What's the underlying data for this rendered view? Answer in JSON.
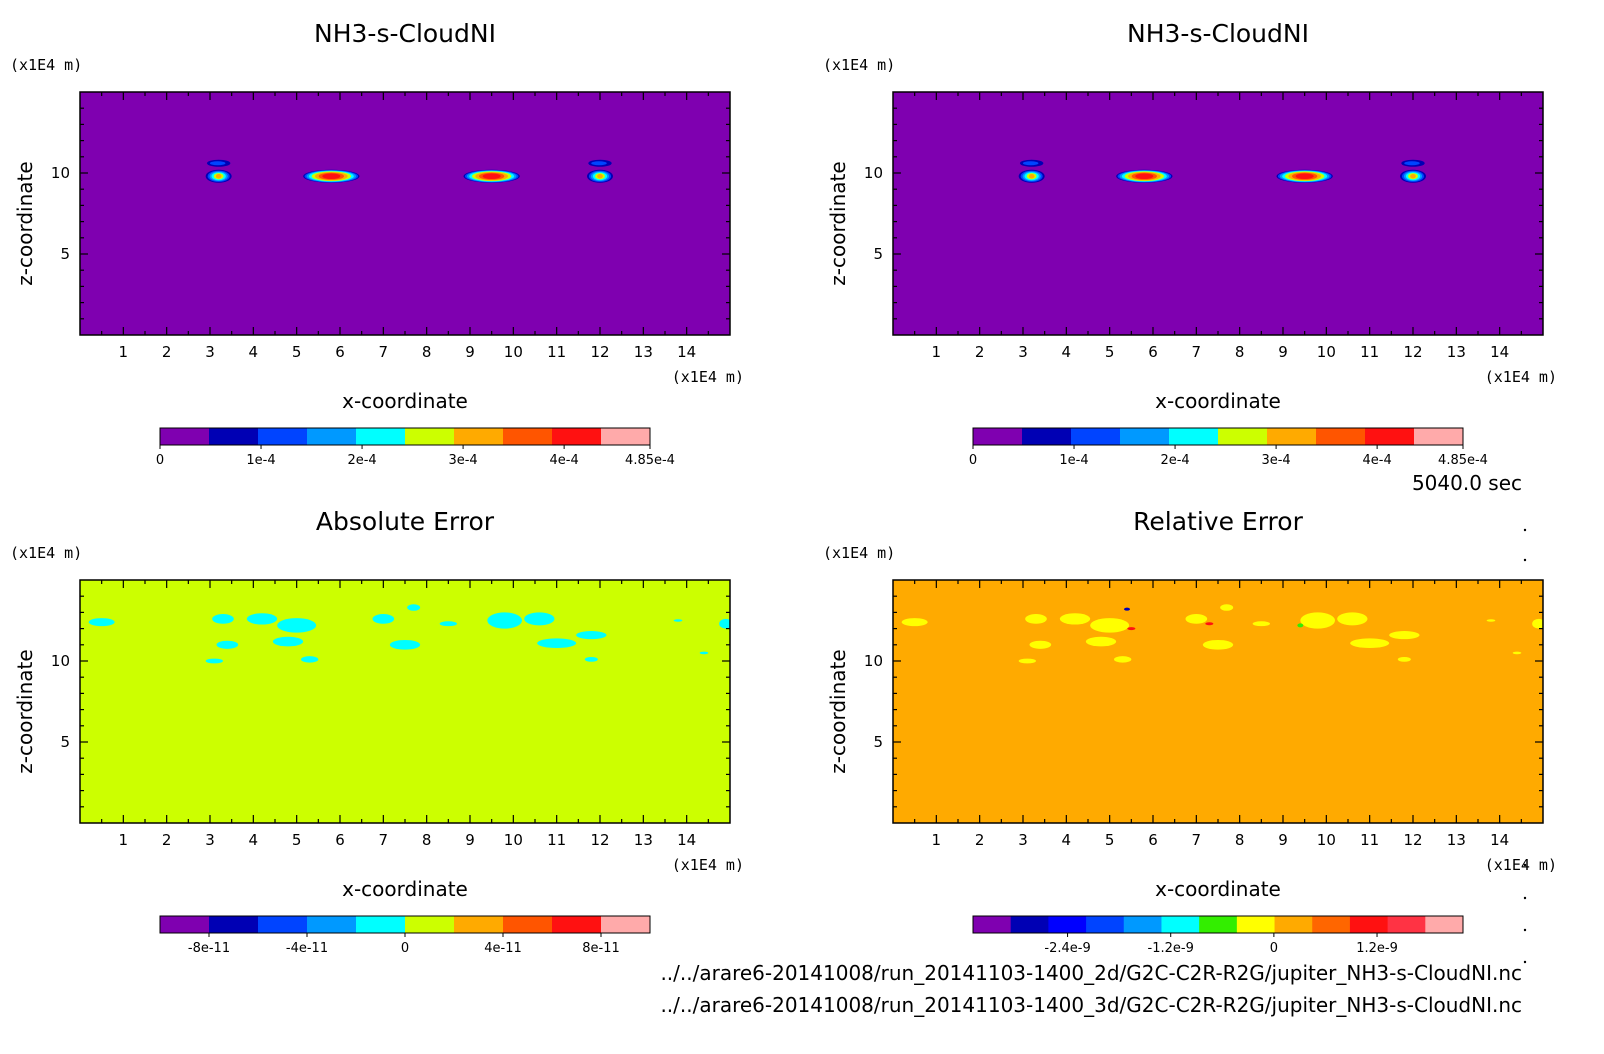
{
  "time_label": "5040.0 sec",
  "files": [
    "../../arare6-20141008/run_20141103-1400_2d/G2C-C2R-R2G/jupiter_NH3-s-CloudNI.nc",
    "../../arare6-20141008/run_20141103-1400_3d/G2C-C2R-R2G/jupiter_NH3-s-CloudNI.nc"
  ],
  "chart_data": [
    {
      "type": "heatmap",
      "title": "NH3-s-CloudNI",
      "xlabel": "x-coordinate",
      "ylabel": "z-coordinate",
      "x_unit": "(x1E4 m)",
      "y_unit": "(x1E4 m)",
      "xlim": [
        0,
        15
      ],
      "ylim": [
        0,
        15
      ],
      "xticks": [
        1,
        2,
        3,
        4,
        5,
        6,
        7,
        8,
        9,
        10,
        11,
        12,
        13,
        14
      ],
      "yticks": [
        5,
        10
      ],
      "background_color": "#7f00b0",
      "features": [
        {
          "kind": "cloud",
          "x": 3.2,
          "z": 9.8,
          "width": 0.6,
          "peak": "2e-4"
        },
        {
          "kind": "cloud",
          "x": 5.8,
          "z": 9.8,
          "width": 1.3,
          "peak": "4e-4"
        },
        {
          "kind": "cloud",
          "x": 9.5,
          "z": 9.8,
          "width": 1.3,
          "peak": "4e-4"
        },
        {
          "kind": "cloud",
          "x": 12.0,
          "z": 9.8,
          "width": 0.6,
          "peak": "2e-4"
        }
      ],
      "colorbar": {
        "colors": [
          "#7f00b0",
          "#0000b4",
          "#0044ff",
          "#0099ff",
          "#00ffff",
          "#ccff00",
          "#ffaa00",
          "#ff5500",
          "#ff1111",
          "#ffaaaa"
        ],
        "labels": [
          "0",
          "1e-4",
          "2e-4",
          "3e-4",
          "4e-4",
          "4.85e-4"
        ],
        "label_positions": [
          0,
          1,
          2,
          3,
          4,
          4.85
        ],
        "range": [
          0,
          4.85
        ]
      }
    },
    {
      "type": "heatmap",
      "title": "NH3-s-CloudNI",
      "xlabel": "x-coordinate",
      "ylabel": "z-coordinate",
      "x_unit": "(x1E4 m)",
      "y_unit": "(x1E4 m)",
      "xlim": [
        0,
        15
      ],
      "ylim": [
        0,
        15
      ],
      "xticks": [
        1,
        2,
        3,
        4,
        5,
        6,
        7,
        8,
        9,
        10,
        11,
        12,
        13,
        14
      ],
      "yticks": [
        5,
        10
      ],
      "background_color": "#7f00b0",
      "features": [
        {
          "kind": "cloud",
          "x": 3.2,
          "z": 9.8,
          "width": 0.6,
          "peak": "2e-4"
        },
        {
          "kind": "cloud",
          "x": 5.8,
          "z": 9.8,
          "width": 1.3,
          "peak": "4e-4"
        },
        {
          "kind": "cloud",
          "x": 9.5,
          "z": 9.8,
          "width": 1.3,
          "peak": "4e-4"
        },
        {
          "kind": "cloud",
          "x": 12.0,
          "z": 9.8,
          "width": 0.6,
          "peak": "2e-4"
        }
      ],
      "colorbar": {
        "colors": [
          "#7f00b0",
          "#0000b4",
          "#0044ff",
          "#0099ff",
          "#00ffff",
          "#ccff00",
          "#ffaa00",
          "#ff5500",
          "#ff1111",
          "#ffaaaa"
        ],
        "labels": [
          "0",
          "1e-4",
          "2e-4",
          "3e-4",
          "4e-4",
          "4.85e-4"
        ],
        "label_positions": [
          0,
          1,
          2,
          3,
          4,
          4.85
        ],
        "range": [
          0,
          4.85
        ]
      }
    },
    {
      "type": "heatmap",
      "title": "Absolute Error",
      "xlabel": "x-coordinate",
      "ylabel": "z-coordinate",
      "x_unit": "(x1E4 m)",
      "y_unit": "(x1E4 m)",
      "xlim": [
        0,
        15
      ],
      "ylim": [
        0,
        15
      ],
      "xticks": [
        1,
        2,
        3,
        4,
        5,
        6,
        7,
        8,
        9,
        10,
        11,
        12,
        13,
        14
      ],
      "yticks": [
        5,
        10
      ],
      "background_color": "#ccff00",
      "patch_color": "#00ffff",
      "patches": [
        {
          "x": 3.3,
          "z": 12.6,
          "rx": 0.25,
          "rz": 0.3
        },
        {
          "x": 4.2,
          "z": 12.6,
          "rx": 0.35,
          "rz": 0.35
        },
        {
          "x": 5.0,
          "z": 12.2,
          "rx": 0.45,
          "rz": 0.45
        },
        {
          "x": 3.4,
          "z": 11.0,
          "rx": 0.25,
          "rz": 0.25
        },
        {
          "x": 4.8,
          "z": 11.2,
          "rx": 0.35,
          "rz": 0.3
        },
        {
          "x": 5.3,
          "z": 10.1,
          "rx": 0.2,
          "rz": 0.2
        },
        {
          "x": 3.1,
          "z": 10.0,
          "rx": 0.2,
          "rz": 0.15
        },
        {
          "x": 7.5,
          "z": 11.0,
          "rx": 0.35,
          "rz": 0.3
        },
        {
          "x": 7.0,
          "z": 12.6,
          "rx": 0.25,
          "rz": 0.3
        },
        {
          "x": 7.7,
          "z": 13.3,
          "rx": 0.15,
          "rz": 0.2
        },
        {
          "x": 8.5,
          "z": 12.3,
          "rx": 0.2,
          "rz": 0.15
        },
        {
          "x": 9.8,
          "z": 12.5,
          "rx": 0.4,
          "rz": 0.5
        },
        {
          "x": 10.6,
          "z": 12.6,
          "rx": 0.35,
          "rz": 0.4
        },
        {
          "x": 11.0,
          "z": 11.1,
          "rx": 0.45,
          "rz": 0.3
        },
        {
          "x": 11.8,
          "z": 11.6,
          "rx": 0.35,
          "rz": 0.25
        },
        {
          "x": 11.8,
          "z": 10.1,
          "rx": 0.15,
          "rz": 0.15
        },
        {
          "x": 0.5,
          "z": 12.4,
          "rx": 0.3,
          "rz": 0.25
        },
        {
          "x": 14.9,
          "z": 12.3,
          "rx": 0.15,
          "rz": 0.3
        },
        {
          "x": 13.8,
          "z": 12.5,
          "rx": 0.1,
          "rz": 0.08
        },
        {
          "x": 14.4,
          "z": 10.5,
          "rx": 0.1,
          "rz": 0.08
        }
      ],
      "colorbar": {
        "colors": [
          "#7f00b0",
          "#0000b4",
          "#0044ff",
          "#0099ff",
          "#00ffff",
          "#ccff00",
          "#ffaa00",
          "#ff5500",
          "#ff1111",
          "#ffaaaa"
        ],
        "labels": [
          "-8e-11",
          "-4e-11",
          "0",
          "4e-11",
          "8e-11"
        ],
        "label_positions": [
          -8,
          -4,
          0,
          4,
          8
        ],
        "range": [
          -10,
          10
        ]
      }
    },
    {
      "type": "heatmap",
      "title": "Relative Error",
      "xlabel": "x-coordinate",
      "ylabel": "z-coordinate",
      "x_unit": "(x1E4 m)",
      "y_unit": "(x1E4 m)",
      "xlim": [
        0,
        15
      ],
      "ylim": [
        0,
        15
      ],
      "xticks": [
        1,
        2,
        3,
        4,
        5,
        6,
        7,
        8,
        9,
        10,
        11,
        12,
        13,
        14
      ],
      "yticks": [
        5,
        10
      ],
      "background_color": "#ffaa00",
      "patch_color": "#ffff00",
      "patches": [
        {
          "x": 3.3,
          "z": 12.6,
          "rx": 0.25,
          "rz": 0.3
        },
        {
          "x": 4.2,
          "z": 12.6,
          "rx": 0.35,
          "rz": 0.35
        },
        {
          "x": 5.0,
          "z": 12.2,
          "rx": 0.45,
          "rz": 0.45
        },
        {
          "x": 3.4,
          "z": 11.0,
          "rx": 0.25,
          "rz": 0.25
        },
        {
          "x": 4.8,
          "z": 11.2,
          "rx": 0.35,
          "rz": 0.3
        },
        {
          "x": 5.3,
          "z": 10.1,
          "rx": 0.2,
          "rz": 0.2
        },
        {
          "x": 3.1,
          "z": 10.0,
          "rx": 0.2,
          "rz": 0.15
        },
        {
          "x": 7.5,
          "z": 11.0,
          "rx": 0.35,
          "rz": 0.3
        },
        {
          "x": 7.0,
          "z": 12.6,
          "rx": 0.25,
          "rz": 0.3
        },
        {
          "x": 7.7,
          "z": 13.3,
          "rx": 0.15,
          "rz": 0.2
        },
        {
          "x": 8.5,
          "z": 12.3,
          "rx": 0.2,
          "rz": 0.15
        },
        {
          "x": 9.8,
          "z": 12.5,
          "rx": 0.4,
          "rz": 0.5
        },
        {
          "x": 10.6,
          "z": 12.6,
          "rx": 0.35,
          "rz": 0.4
        },
        {
          "x": 11.0,
          "z": 11.1,
          "rx": 0.45,
          "rz": 0.3
        },
        {
          "x": 11.8,
          "z": 11.6,
          "rx": 0.35,
          "rz": 0.25
        },
        {
          "x": 11.8,
          "z": 10.1,
          "rx": 0.15,
          "rz": 0.15
        },
        {
          "x": 0.5,
          "z": 12.4,
          "rx": 0.3,
          "rz": 0.25
        },
        {
          "x": 14.9,
          "z": 12.3,
          "rx": 0.15,
          "rz": 0.3
        },
        {
          "x": 13.8,
          "z": 12.5,
          "rx": 0.1,
          "rz": 0.08
        },
        {
          "x": 14.4,
          "z": 10.5,
          "rx": 0.1,
          "rz": 0.08
        }
      ],
      "colorbar": {
        "colors": [
          "#7f00b0",
          "#0000b4",
          "#0000ff",
          "#0044ff",
          "#0099ff",
          "#00ffff",
          "#33ee00",
          "#ffff00",
          "#ffaa00",
          "#ff6600",
          "#ff1111",
          "#ff3344",
          "#ffaaaa"
        ],
        "labels": [
          "-2.4e-9",
          "-1.2e-9",
          "0",
          "1.2e-9"
        ],
        "label_positions": [
          -2.4,
          -1.2,
          0,
          1.2
        ],
        "range": [
          -3.5,
          2.2
        ]
      }
    }
  ]
}
